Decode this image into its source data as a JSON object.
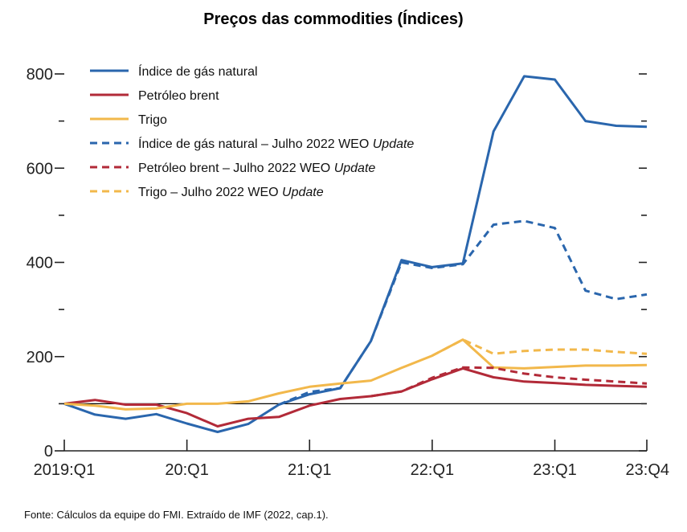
{
  "chart_data": {
    "type": "line",
    "title": "Preços das commodities (Índices)",
    "source": "Fonte: Cálculos da equipe do FMI. Extraído de IMF (2022, cap.1).",
    "x_tick_labels": [
      "2019:Q1",
      "20:Q1",
      "21:Q1",
      "22:Q1",
      "23:Q1",
      "23:Q4"
    ],
    "x_tick_positions": [
      0,
      4,
      8,
      12,
      16,
      19
    ],
    "ylim": [
      0,
      800
    ],
    "y_ticks_major": [
      0,
      200,
      400,
      600,
      800
    ],
    "y_ticks_minor": [
      100,
      300,
      500,
      700
    ],
    "reference_line": 100,
    "grid": false,
    "legend_position": "top-left",
    "series": [
      {
        "name": "Índice de gás natural",
        "color": "#2a66ad",
        "dash": "solid",
        "x": [
          0,
          1,
          2,
          3,
          4,
          5,
          6,
          7,
          8,
          9,
          10,
          11,
          12,
          13,
          14,
          15,
          16,
          17,
          18,
          19
        ],
        "values": [
          100,
          77,
          68,
          78,
          58,
          40,
          57,
          98,
          120,
          133,
          233,
          405,
          390,
          398,
          678,
          795,
          788,
          700,
          690,
          688
        ]
      },
      {
        "name": "Petróleo brent",
        "color": "#b22a38",
        "dash": "solid",
        "x": [
          0,
          1,
          2,
          3,
          4,
          5,
          6,
          7,
          8,
          9,
          10,
          11,
          12,
          13,
          14,
          15,
          16,
          17,
          18,
          19
        ],
        "values": [
          100,
          108,
          98,
          98,
          80,
          52,
          68,
          72,
          96,
          110,
          116,
          126,
          152,
          175,
          156,
          147,
          144,
          140,
          138,
          136
        ]
      },
      {
        "name": "Trigo",
        "color": "#f2b84b",
        "dash": "solid",
        "x": [
          0,
          1,
          2,
          3,
          4,
          5,
          6,
          7,
          8,
          9,
          10,
          11,
          12,
          13,
          14,
          15,
          16,
          17,
          18,
          19
        ],
        "values": [
          100,
          96,
          88,
          90,
          100,
          100,
          105,
          122,
          136,
          143,
          149,
          176,
          202,
          236,
          177,
          175,
          178,
          181,
          181,
          182
        ]
      },
      {
        "name": "Índice de gás natural – Julho 2022 WEO Update",
        "label_plain": "Índice de gás natural – Julho 2022 WEO ",
        "label_italic": "Update",
        "color": "#2a66ad",
        "dash": "dashed",
        "x": [
          7,
          8,
          9,
          10,
          11,
          12,
          13,
          14,
          15,
          16,
          17,
          18,
          19
        ],
        "values": [
          98,
          125,
          133,
          233,
          400,
          388,
          396,
          480,
          488,
          473,
          340,
          322,
          332
        ]
      },
      {
        "name": "Petróleo brent – Julho 2022 WEO Update",
        "label_plain": "Petróleo brent – Julho 2022 WEO ",
        "label_italic": "Update",
        "color": "#b22a38",
        "dash": "dashed",
        "x": [
          10,
          11,
          12,
          13,
          14,
          15,
          16,
          17,
          18,
          19
        ],
        "values": [
          116,
          126,
          155,
          177,
          176,
          164,
          156,
          151,
          147,
          143
        ]
      },
      {
        "name": "Trigo – Julho 2022 WEO Update",
        "label_plain": "Trigo – Julho 2022 WEO ",
        "label_italic": "Update",
        "color": "#f2b84b",
        "dash": "dashed",
        "x": [
          12,
          13,
          14,
          15,
          16,
          17,
          18,
          19
        ],
        "values": [
          202,
          236,
          206,
          212,
          215,
          215,
          210,
          206
        ]
      }
    ]
  }
}
